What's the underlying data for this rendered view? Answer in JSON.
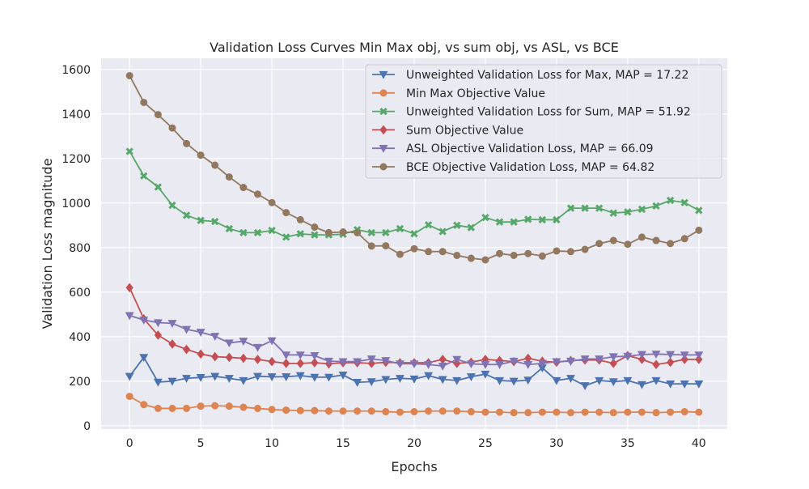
{
  "chart_data": {
    "type": "line",
    "title": "Validation Loss Curves Min Max obj, vs sum obj, vs ASL, vs BCE",
    "xlabel": "Epochs",
    "ylabel": "Validation Loss magnitude",
    "xlim": [
      -2.0,
      42.0
    ],
    "ylim": [
      -15,
      1650
    ],
    "xticks": [
      0,
      5,
      10,
      15,
      20,
      25,
      30,
      35,
      40
    ],
    "yticks": [
      0,
      200,
      400,
      600,
      800,
      1000,
      1200,
      1400,
      1600
    ],
    "grid": true,
    "legend_position": "top-right",
    "x": [
      0,
      1,
      2,
      3,
      4,
      5,
      6,
      7,
      8,
      9,
      10,
      11,
      12,
      13,
      14,
      15,
      16,
      17,
      18,
      19,
      20,
      21,
      22,
      23,
      24,
      25,
      26,
      27,
      28,
      29,
      30,
      31,
      32,
      33,
      34,
      35,
      36,
      37,
      38,
      39,
      40
    ],
    "series": [
      {
        "name": "Unweighted Validation Loss for Max, MAP = 17.22",
        "color": "#4c72b0",
        "marker": "triangle-down",
        "values": [
          222,
          307,
          196,
          200,
          213,
          217,
          222,
          213,
          203,
          222,
          220,
          220,
          225,
          218,
          218,
          228,
          195,
          198,
          208,
          213,
          210,
          225,
          208,
          203,
          220,
          232,
          203,
          200,
          205,
          260,
          203,
          213,
          180,
          203,
          198,
          203,
          185,
          203,
          188,
          188,
          188
        ]
      },
      {
        "name": "Min Max Objective Value",
        "color": "#dd8452",
        "marker": "circle",
        "values": [
          132,
          95,
          78,
          78,
          78,
          88,
          90,
          88,
          83,
          78,
          73,
          70,
          68,
          68,
          66,
          66,
          66,
          66,
          63,
          61,
          63,
          66,
          66,
          66,
          63,
          61,
          61,
          59,
          59,
          61,
          61,
          59,
          61,
          61,
          59,
          61,
          61,
          59,
          61,
          63,
          61
        ]
      },
      {
        "name": "Unweighted Validation Loss for Sum, MAP = 51.92",
        "color": "#55a868",
        "marker": "x",
        "values": [
          1232,
          1122,
          1072,
          990,
          945,
          922,
          917,
          885,
          867,
          867,
          877,
          847,
          862,
          857,
          857,
          860,
          880,
          867,
          867,
          885,
          862,
          902,
          872,
          900,
          890,
          935,
          915,
          915,
          927,
          925,
          925,
          977,
          977,
          977,
          955,
          960,
          972,
          987,
          1012,
          1002,
          967
        ]
      },
      {
        "name": "Sum Objective Value",
        "color": "#c44e52",
        "marker": "diamond",
        "values": [
          620,
          480,
          407,
          367,
          343,
          322,
          310,
          307,
          303,
          298,
          288,
          280,
          280,
          283,
          278,
          283,
          283,
          280,
          285,
          283,
          283,
          283,
          298,
          280,
          285,
          298,
          293,
          288,
          303,
          290,
          285,
          293,
          295,
          295,
          280,
          315,
          298,
          275,
          285,
          298,
          298
        ]
      },
      {
        "name": "ASL Objective Validation Loss, MAP = 66.09",
        "color": "#8172b3",
        "marker": "triangle-down",
        "values": [
          495,
          475,
          463,
          460,
          433,
          420,
          402,
          372,
          380,
          352,
          382,
          318,
          318,
          315,
          290,
          288,
          288,
          300,
          293,
          278,
          278,
          275,
          268,
          298,
          278,
          275,
          275,
          290,
          275,
          280,
          288,
          290,
          300,
          300,
          310,
          312,
          320,
          322,
          320,
          318,
          318
        ]
      },
      {
        "name": "BCE Objective Validation Loss, MAP = 64.82",
        "color": "#937860",
        "marker": "circle",
        "values": [
          1572,
          1452,
          1397,
          1337,
          1267,
          1215,
          1170,
          1117,
          1070,
          1040,
          1002,
          957,
          925,
          892,
          867,
          870,
          867,
          807,
          808,
          770,
          795,
          782,
          782,
          765,
          752,
          745,
          773,
          765,
          773,
          762,
          785,
          782,
          792,
          818,
          832,
          815,
          847,
          832,
          818,
          840,
          878
        ]
      }
    ]
  }
}
